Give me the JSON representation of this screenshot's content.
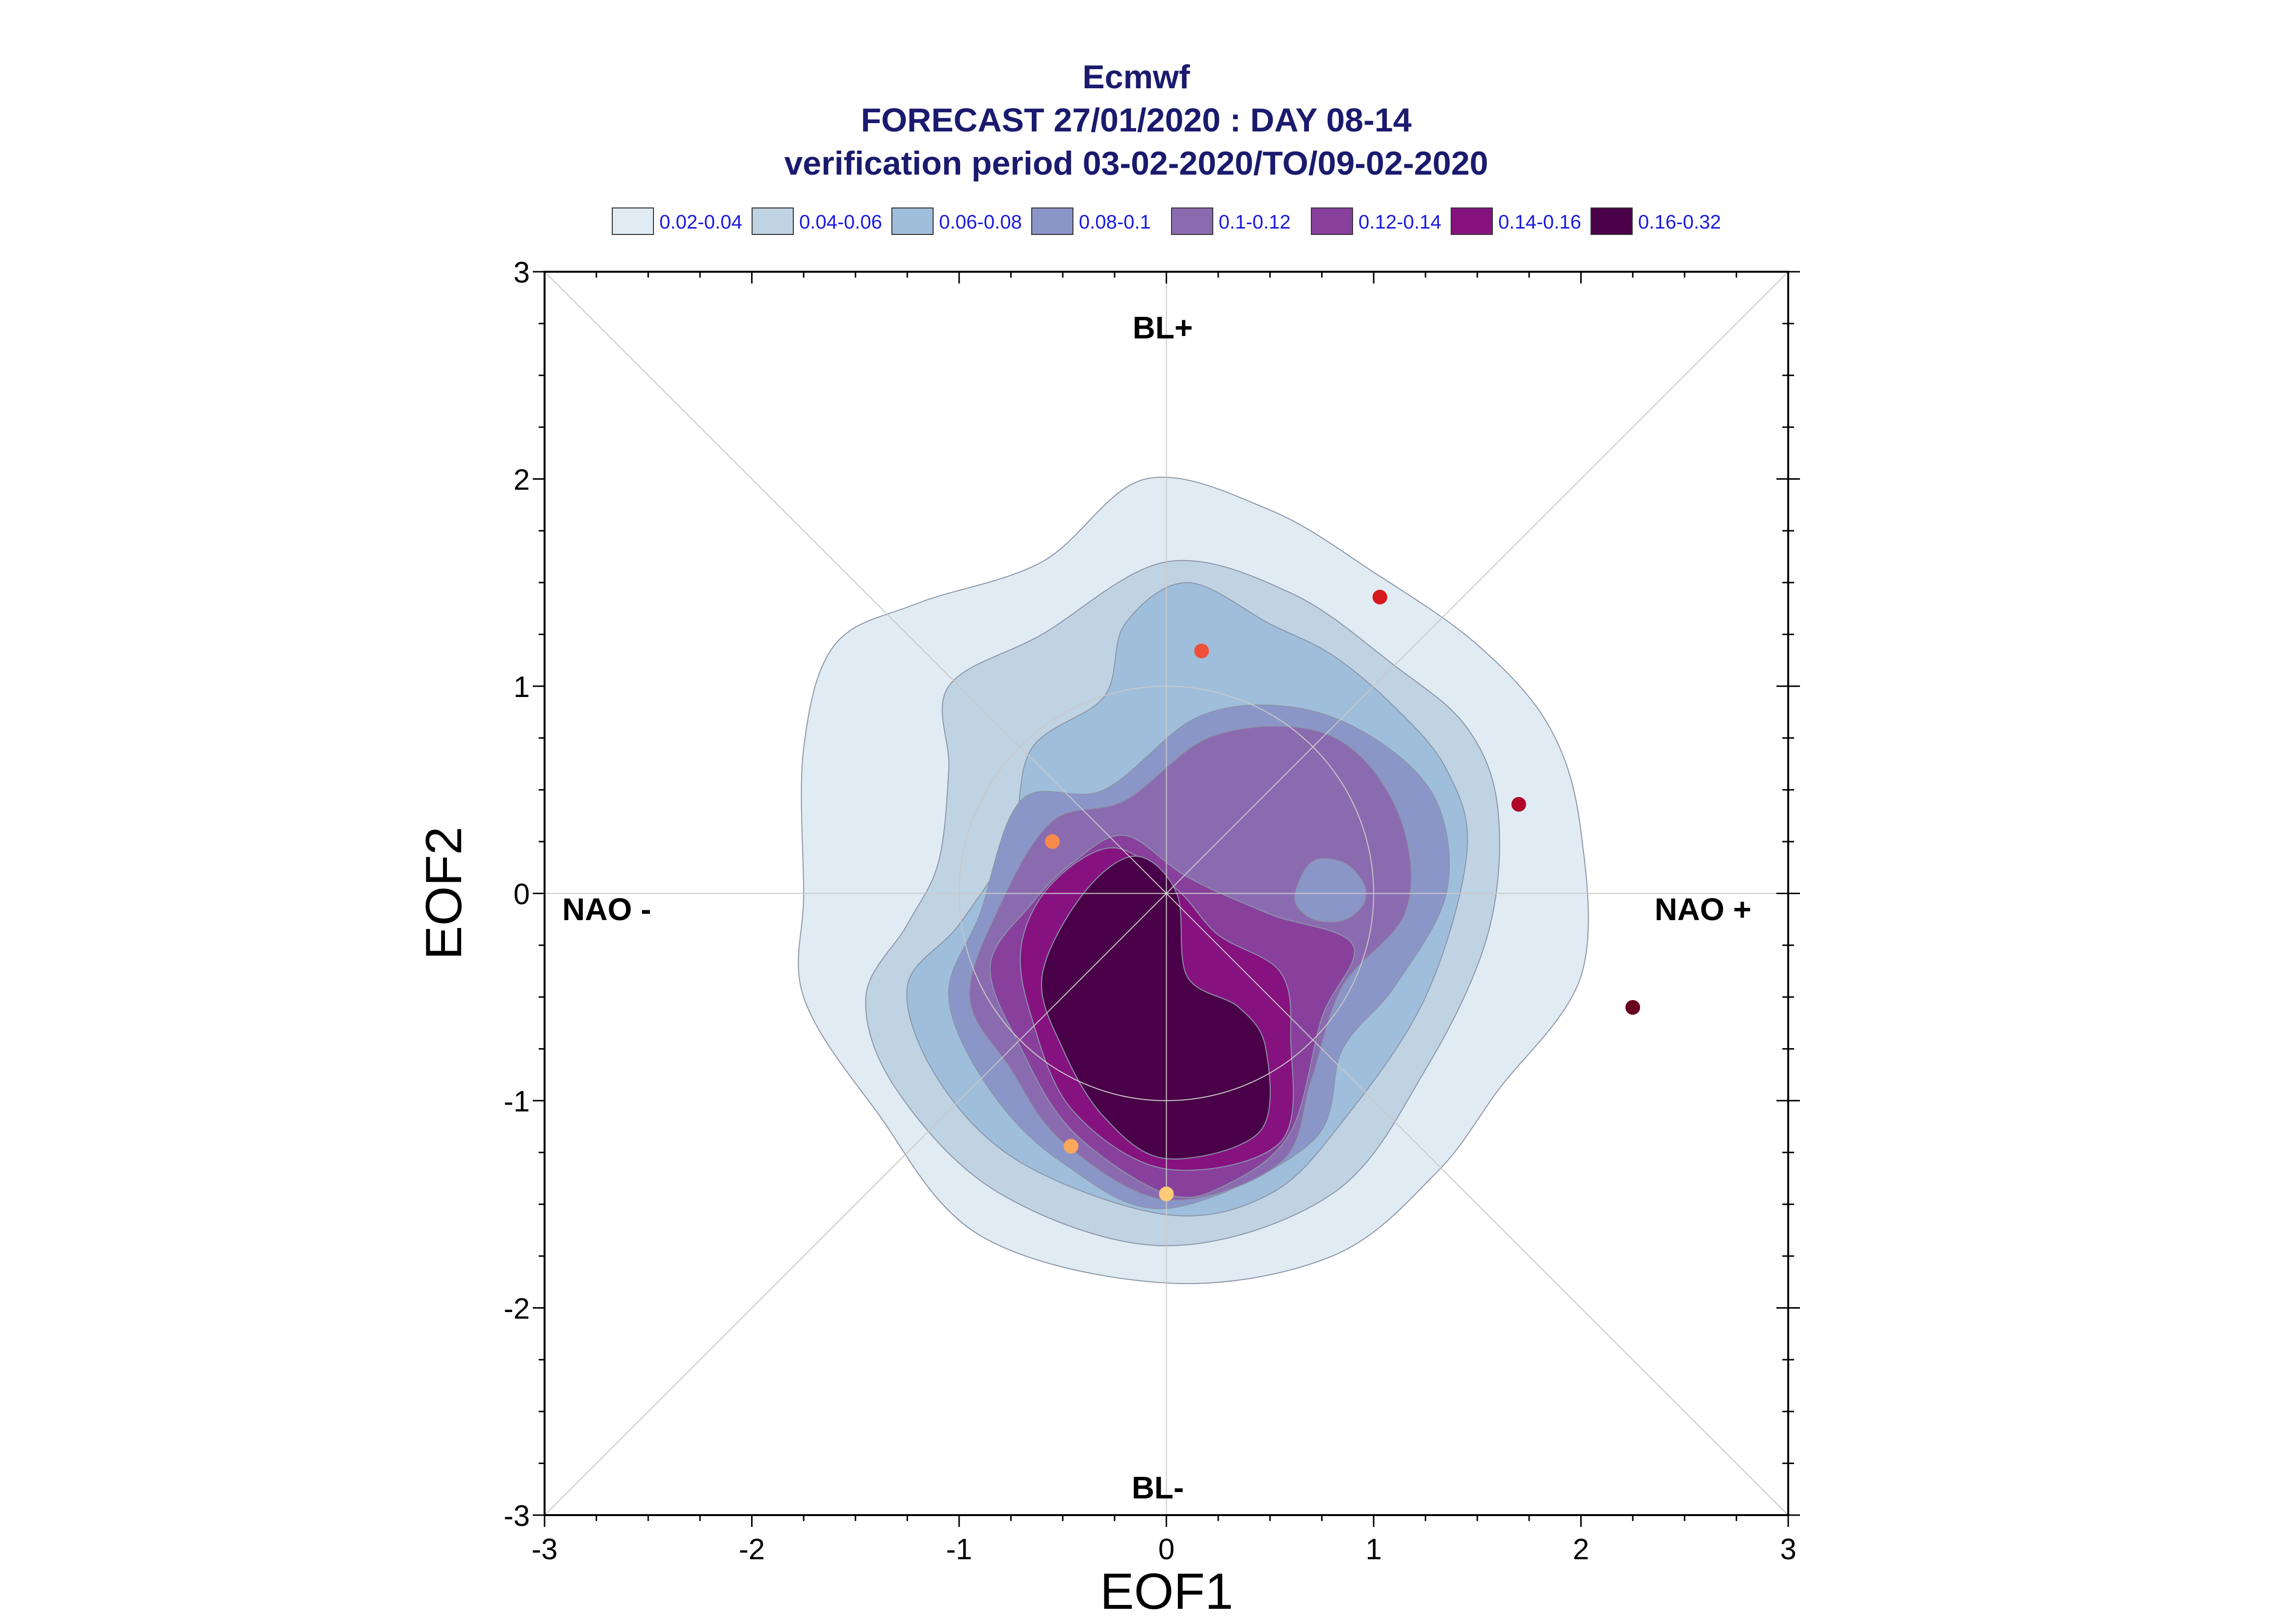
{
  "chart_data": {
    "type": "contour",
    "title": "Ecmwf",
    "subtitle": "FORECAST 27/01/2020 : DAY 08-14",
    "subtitle2": "verification period 03-02-2020/TO/09-02-2020",
    "xlabel": "EOF1",
    "ylabel": "EOF2",
    "xlim": [
      -3,
      3
    ],
    "ylim": [
      -3,
      3
    ],
    "xticks": [
      -3,
      -2,
      -1,
      0,
      1,
      2,
      3
    ],
    "yticks": [
      -3,
      -2,
      -1,
      0,
      1,
      2,
      3
    ],
    "regime_labels": {
      "top": "BL+",
      "bottom": "BL-",
      "left": "NAO -",
      "right": "NAO +"
    },
    "legend_placement": "top",
    "legend": [
      {
        "label": "0.02-0.04",
        "color": "#e0ebf3"
      },
      {
        "label": "0.04-0.06",
        "color": "#c0d3e3"
      },
      {
        "label": "0.06-0.08",
        "color": "#9fbedb"
      },
      {
        "label": "0.08-0.1",
        "color": "#8b96c8"
      },
      {
        "label": "0.1-0.12",
        "color": "#8b6bb0"
      },
      {
        "label": "0.12-0.14",
        "color": "#88409c"
      },
      {
        "label": "0.14-0.16",
        "color": "#861280"
      },
      {
        "label": "0.16-0.32",
        "color": "#4a0048"
      }
    ],
    "contours": [
      {
        "level": "0.02-0.04",
        "points": [
          [
            -0.1,
            2.0
          ],
          [
            0.5,
            1.85
          ],
          [
            1.0,
            1.55
          ],
          [
            1.5,
            1.2
          ],
          [
            1.85,
            0.8
          ],
          [
            2.0,
            0.3
          ],
          [
            2.0,
            -0.4
          ],
          [
            1.6,
            -0.95
          ],
          [
            1.3,
            -1.35
          ],
          [
            0.8,
            -1.75
          ],
          [
            0.0,
            -1.88
          ],
          [
            -0.9,
            -1.65
          ],
          [
            -1.4,
            -1.05
          ],
          [
            -1.75,
            -0.5
          ],
          [
            -1.75,
            0.0
          ],
          [
            -1.75,
            0.7
          ],
          [
            -1.6,
            1.2
          ],
          [
            -1.2,
            1.4
          ],
          [
            -0.6,
            1.6
          ]
        ]
      },
      {
        "level": "0.04-0.06",
        "points": [
          [
            0.0,
            1.6
          ],
          [
            0.6,
            1.45
          ],
          [
            1.1,
            1.1
          ],
          [
            1.45,
            0.8
          ],
          [
            1.6,
            0.4
          ],
          [
            1.55,
            -0.2
          ],
          [
            1.25,
            -0.85
          ],
          [
            0.8,
            -1.45
          ],
          [
            0.0,
            -1.7
          ],
          [
            -0.8,
            -1.45
          ],
          [
            -1.3,
            -0.95
          ],
          [
            -1.45,
            -0.5
          ],
          [
            -1.25,
            -0.15
          ],
          [
            -1.1,
            0.15
          ],
          [
            -1.05,
            0.6
          ],
          [
            -1.05,
            1.0
          ],
          [
            -0.6,
            1.25
          ]
        ]
      },
      {
        "level": "0.06-0.08",
        "points": [
          [
            0.1,
            1.5
          ],
          [
            0.5,
            1.3
          ],
          [
            0.8,
            1.15
          ],
          [
            1.1,
            0.9
          ],
          [
            1.35,
            0.6
          ],
          [
            1.45,
            0.2
          ],
          [
            1.25,
            -0.5
          ],
          [
            0.85,
            -1.1
          ],
          [
            0.5,
            -1.45
          ],
          [
            0.0,
            -1.55
          ],
          [
            -0.7,
            -1.3
          ],
          [
            -1.1,
            -0.9
          ],
          [
            -1.25,
            -0.45
          ],
          [
            -1.0,
            -0.15
          ],
          [
            -0.75,
            0.25
          ],
          [
            -0.65,
            0.7
          ],
          [
            -0.3,
            0.95
          ],
          [
            -0.2,
            1.3
          ]
        ]
      },
      {
        "level": "0.08-0.1",
        "points": [
          [
            0.15,
            0.85
          ],
          [
            0.6,
            0.9
          ],
          [
            1.0,
            0.75
          ],
          [
            1.3,
            0.45
          ],
          [
            1.35,
            0.0
          ],
          [
            1.1,
            -0.45
          ],
          [
            0.85,
            -0.75
          ],
          [
            0.7,
            -1.2
          ],
          [
            0.0,
            -1.52
          ],
          [
            -0.5,
            -1.3
          ],
          [
            -0.85,
            -0.95
          ],
          [
            -1.05,
            -0.5
          ],
          [
            -0.9,
            -0.1
          ],
          [
            -0.7,
            0.45
          ],
          [
            -0.3,
            0.5
          ]
        ]
      },
      {
        "level": "0.1-0.12",
        "points": [
          [
            0.2,
            0.75
          ],
          [
            0.65,
            0.8
          ],
          [
            0.95,
            0.65
          ],
          [
            1.15,
            0.3
          ],
          [
            1.15,
            -0.1
          ],
          [
            0.85,
            -0.45
          ],
          [
            0.7,
            -0.9
          ],
          [
            0.55,
            -1.3
          ],
          [
            0.0,
            -1.48
          ],
          [
            -0.5,
            -1.2
          ],
          [
            -0.75,
            -0.85
          ],
          [
            -0.95,
            -0.5
          ],
          [
            -0.8,
            -0.05
          ],
          [
            -0.55,
            0.35
          ],
          [
            -0.2,
            0.45
          ]
        ]
      },
      {
        "level": "0.12-0.14",
        "points": [
          [
            -0.2,
            0.28
          ],
          [
            0.1,
            0.08
          ],
          [
            0.5,
            -0.1
          ],
          [
            0.9,
            -0.25
          ],
          [
            0.75,
            -0.6
          ],
          [
            0.6,
            -1.15
          ],
          [
            0.3,
            -1.4
          ],
          [
            0.0,
            -1.45
          ],
          [
            -0.45,
            -1.15
          ],
          [
            -0.7,
            -0.75
          ],
          [
            -0.85,
            -0.35
          ],
          [
            -0.65,
            -0.05
          ],
          [
            -0.45,
            0.15
          ]
        ]
      },
      {
        "level": "0.14-0.16",
        "points": [
          [
            -0.25,
            0.22
          ],
          [
            0.05,
            0.02
          ],
          [
            0.25,
            -0.2
          ],
          [
            0.55,
            -0.38
          ],
          [
            0.6,
            -0.7
          ],
          [
            0.55,
            -1.2
          ],
          [
            0.0,
            -1.33
          ],
          [
            -0.45,
            -1.05
          ],
          [
            -0.65,
            -0.6
          ],
          [
            -0.7,
            -0.25
          ],
          [
            -0.55,
            0.05
          ]
        ]
      },
      {
        "level": "0.16-0.32",
        "points": [
          [
            -0.15,
            0.18
          ],
          [
            0.05,
            0.0
          ],
          [
            0.1,
            -0.4
          ],
          [
            0.35,
            -0.55
          ],
          [
            0.48,
            -0.75
          ],
          [
            0.45,
            -1.15
          ],
          [
            0.0,
            -1.28
          ],
          [
            -0.3,
            -1.08
          ],
          [
            -0.5,
            -0.75
          ],
          [
            -0.6,
            -0.4
          ],
          [
            -0.4,
            0.0
          ]
        ]
      }
    ],
    "inner_blob": {
      "level": "0.08-0.1",
      "points": [
        [
          0.7,
          0.15
        ],
        [
          0.85,
          0.15
        ],
        [
          0.95,
          0.05
        ],
        [
          0.95,
          -0.05
        ],
        [
          0.85,
          -0.13
        ],
        [
          0.7,
          -0.12
        ],
        [
          0.62,
          -0.02
        ]
      ]
    },
    "points": [
      {
        "x": 1.03,
        "y": 1.43,
        "color": "#d7191c"
      },
      {
        "x": 0.17,
        "y": 1.17,
        "color": "#f0503a"
      },
      {
        "x": 1.7,
        "y": 0.43,
        "color": "#b0062a"
      },
      {
        "x": -0.55,
        "y": 0.25,
        "color": "#f88a4a"
      },
      {
        "x": 2.25,
        "y": -0.55,
        "color": "#6a0020"
      },
      {
        "x": -0.46,
        "y": -1.22,
        "color": "#fca85a"
      },
      {
        "x": 0.0,
        "y": -1.45,
        "color": "#fecb78"
      }
    ]
  }
}
